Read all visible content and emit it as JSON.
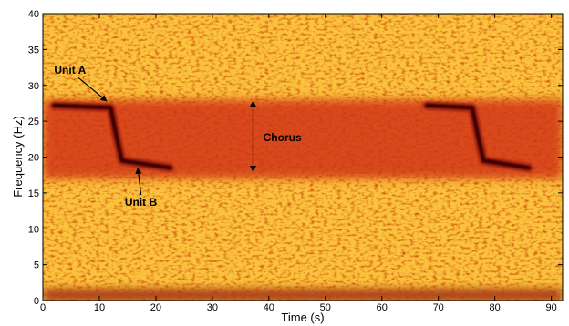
{
  "chart_data": {
    "type": "heatmap",
    "title": "",
    "xlabel": "Time (s)",
    "ylabel": "Frequency (Hz)",
    "xlim": [
      0,
      92
    ],
    "ylim": [
      0,
      40
    ],
    "x_ticks": [
      0,
      10,
      20,
      30,
      40,
      50,
      60,
      70,
      80,
      90
    ],
    "y_ticks": [
      0,
      5,
      10,
      15,
      20,
      25,
      30,
      35,
      40
    ],
    "grid": false,
    "colormap": [
      "#fff3a0",
      "#ffd23a",
      "#f08a1c",
      "#d2341a",
      "#8a0f0a",
      "#1a0000"
    ],
    "bands": [
      {
        "from": 17,
        "to": 28,
        "level": 0.55
      },
      {
        "from": 0,
        "to": 1.5,
        "level": 0.75
      }
    ],
    "calls": [
      {
        "points": [
          [
            2,
            27.2
          ],
          [
            12,
            26.9
          ],
          [
            13,
            23
          ],
          [
            14,
            19.5
          ],
          [
            22.5,
            18.5
          ]
        ],
        "level": 0.97
      },
      {
        "points": [
          [
            68,
            27.2
          ],
          [
            76,
            26.9
          ],
          [
            77,
            23
          ],
          [
            78,
            19.5
          ],
          [
            86,
            18.5
          ]
        ],
        "level": 0.97
      }
    ],
    "annotations": [
      {
        "text": "Unit A",
        "x": 2,
        "y": 31.6,
        "arrow_to": [
          11.3,
          27.8
        ]
      },
      {
        "text": "Unit B",
        "x": 14.5,
        "y": 13.2,
        "arrow_to": [
          16.8,
          18.5
        ]
      },
      {
        "text": "Chorus",
        "x": 39,
        "y": 22.2,
        "arrow_span": {
          "x": 37.2,
          "y_from": 18,
          "y_to": 27.8
        }
      }
    ]
  }
}
